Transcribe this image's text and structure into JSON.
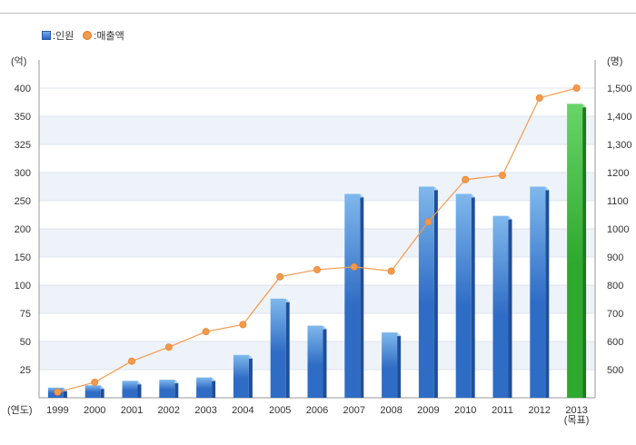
{
  "legend": {
    "bar_label": ":인원",
    "line_label": ":매출액",
    "bar_icon": "blue-bar-swatch",
    "line_icon": "orange-circle-swatch"
  },
  "chart_data": {
    "type": "bar",
    "categories": [
      "1999",
      "2000",
      "2001",
      "2002",
      "2003",
      "2004",
      "2005",
      "2006",
      "2007",
      "2008",
      "2009",
      "2010",
      "2011",
      "2012",
      "2013\n(목표)"
    ],
    "left_axis": {
      "label": "(억)",
      "ticks": [
        "25",
        "50",
        "75",
        "100",
        "150",
        "200",
        "250",
        "300",
        "325",
        "350",
        "400"
      ]
    },
    "right_axis": {
      "label": "(명)",
      "ticks": [
        "500",
        "600",
        "700",
        "800",
        "900",
        "1000",
        "1100",
        "1200",
        "1,300",
        "1,400",
        "1,500"
      ]
    },
    "x_axis_label": "(연도)",
    "series": [
      {
        "name": ":인원",
        "type": "bar",
        "axis": "left",
        "values": [
          9,
          11,
          15,
          16,
          18,
          38,
          88,
          64,
          262,
          58,
          275,
          262,
          223,
          275,
          372
        ],
        "highlight_last": true
      },
      {
        "name": ":매출액",
        "type": "line",
        "axis": "right",
        "values": [
          420,
          455,
          530,
          580,
          635,
          660,
          830,
          855,
          865,
          850,
          1025,
          1175,
          1190,
          1465,
          1500
        ]
      }
    ],
    "colors": {
      "bar": "#2f6cc5",
      "bar_light": "#7fb8ec",
      "bar_highlight": "#2ea82e",
      "bar_highlight_light": "#68d468",
      "line": "#f39a4c",
      "grid_band": "#eef3fa"
    },
    "grid": true,
    "legend_position": "top-left"
  }
}
